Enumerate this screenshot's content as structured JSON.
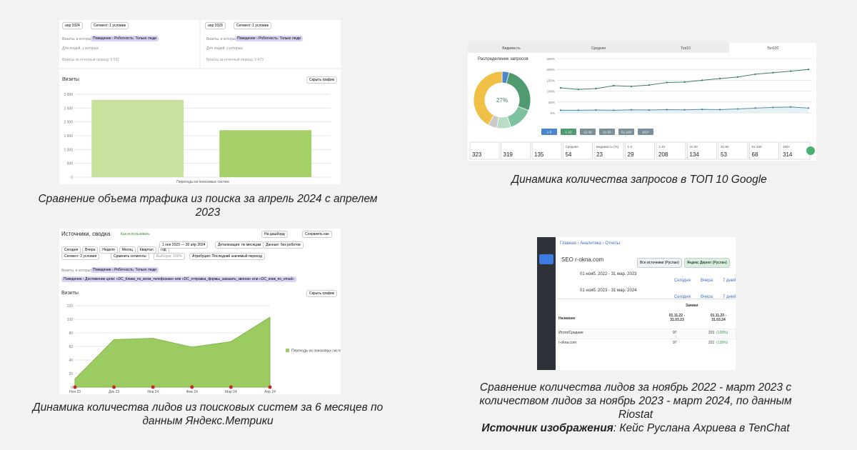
{
  "traffic": {
    "left_date": "апр 2024",
    "right_date": "апр 2023",
    "segment": "Сегмент: 1 условие",
    "visits_in": "Визиты, в которых",
    "condition": "Поведение › Роботность: Только люди",
    "for_people": "Для людей, у которых",
    "left_total": "Визиты за отчетный период: 9 591",
    "right_total": "Визиты за отчетный период: 9 473",
    "metric": "Визиты",
    "hide": "Скрыть график",
    "chart_data": {
      "type": "bar",
      "categories": [
        null,
        null
      ],
      "xlabel": "Переходы из поисковых систем",
      "values": [
        2800,
        1700
      ],
      "colors": [
        "#c7e29e",
        "#a5d06a"
      ],
      "ylim": [
        0,
        3000
      ],
      "yticks": [
        0,
        500,
        {
          "value": 1000,
          "label": "1 000"
        },
        {
          "value": 1500,
          "label": "1 500"
        },
        {
          "value": 2000,
          "label": "2 000"
        },
        {
          "value": 2500,
          "label": "2 500"
        },
        {
          "value": 3000,
          "label": "3 000"
        }
      ],
      "grid": true
    }
  },
  "top10": {
    "tabs": [
      "Видимость",
      "Средняя",
      "Топ10",
      "Топ100"
    ],
    "donut_title": "Распределение запросов",
    "donut": {
      "type": "pie",
      "values": [
        4,
        27,
        14,
        8,
        5,
        42
      ],
      "colors": [
        "#4a86c8",
        "#4f9a6e",
        "#7cc2a0",
        "#b8dcc4",
        "#c9c9c9",
        "#f0bf45"
      ],
      "center_label": "27%"
    },
    "chart_data": {
      "type": "line",
      "ylim": [
        0,
        250
      ],
      "yticks": [
        {
          "value": 0,
          "label": "0%"
        },
        {
          "value": 50,
          "label": "50%"
        },
        {
          "value": 100,
          "label": "100%"
        },
        {
          "value": 150,
          "label": "150%"
        },
        {
          "value": 200,
          "label": "200%"
        },
        {
          "value": 250,
          "label": "250%"
        }
      ],
      "grid": true,
      "series": [
        {
          "name": "Топ10",
          "color": "#3d7f6f",
          "values": [
            115,
            108,
            112,
            125,
            122,
            128,
            140,
            142,
            150,
            158,
            165,
            178,
            185,
            192,
            200
          ]
        },
        {
          "name": "Топ100",
          "color": "#4f8aa8",
          "values": [
            12,
            12,
            13,
            12,
            14,
            13,
            15,
            14,
            16,
            15,
            18,
            22,
            25,
            27,
            22
          ]
        }
      ]
    },
    "ranges": [
      "1-3",
      "1-10",
      "11-30",
      "31-50",
      "51-100",
      "101+"
    ],
    "stats": [
      {
        "label": "",
        "value": 323
      },
      {
        "label": "",
        "value": 319
      },
      {
        "label": "",
        "value": 135
      },
      {
        "label": "Средняя",
        "value": 54
      },
      {
        "label": "Видимость (%)",
        "value": 23
      },
      {
        "label": "1-3",
        "value": 29
      },
      {
        "label": "1-10",
        "value": 208
      },
      {
        "label": "11-30",
        "value": 134
      },
      {
        "label": "31-50",
        "value": 53
      },
      {
        "label": "51-100",
        "value": 68
      },
      {
        "label": "100+",
        "value": 314
      }
    ]
  },
  "leads": {
    "title": "Источники, сводка",
    "howto": "Как использовать",
    "periods": [
      "Сегодня",
      "Вчера",
      "Неделя",
      "Месяц",
      "Квартал",
      "Год"
    ],
    "range": "1 ноя 2023 — 30 апр 2024",
    "detail": "Детализация: по месяцам",
    "robots": "Данные: без роботов",
    "segment": "Сегмент: 2 условия",
    "compare": "Сравнить сегменты",
    "sample": "Выборка: 100%",
    "attribution": "Атрибуция: Последний значимый переход",
    "dashboard": "На дашборд",
    "save": "Сохранить как",
    "visits_in": "Визиты, в которых",
    "condition": "Поведение › Роботность: Только люди",
    "goal": "Поведение › Достижение цели: «DC_Клики_по_всем_телефонам» или «DC_отправка_формы_заказать_звонок» или «DC_клик_по_email»",
    "metric": "Визиты",
    "hide": "Скрыть график",
    "chart_data": {
      "type": "area",
      "categories": [
        "Ноя 23",
        "Дек 23",
        "Янв 24",
        "Фев 24",
        "Мар 24",
        "Апр 24"
      ],
      "values": [
        12,
        70,
        72,
        59,
        67,
        103
      ],
      "color": "#9ccb62",
      "ylim": [
        0,
        120
      ],
      "yticks": [
        0,
        20,
        40,
        60,
        80,
        100,
        120
      ],
      "grid": true,
      "legend": "Переходы из поисковых систем"
    }
  },
  "riostat": {
    "crumbs": [
      "Главная",
      "Аналитика",
      "Отчеты"
    ],
    "project": "SEO r-okna.com",
    "chips": [
      "Все источники (Руслан)",
      "Яндекс Директ (Руслан)"
    ],
    "date1": "01 нояб. 2022 - 31 мар. 2023",
    "date2": "01 нояб. 2023 - 31 мар. 2024",
    "quick": [
      "Сегодня",
      "Вчера",
      "7 дней"
    ],
    "group": "Заявки",
    "name_col": "Название",
    "cols": [
      "01.11.22 - 31.03.23",
      "01.11.23 - 31.03.24"
    ],
    "rows": [
      [
        "Итого/Средние",
        "97",
        "221",
        "(128%)"
      ],
      [
        "r-okna.com",
        "97",
        "221",
        "(128%)"
      ]
    ]
  },
  "captions": {
    "traffic": "Сравнение объема трафика из поиска за апрель 2024 с апрелем 2023",
    "top10": "Динамика количества запросов в ТОП 10 Google",
    "leads": "Динамика количества лидов из поисковых систем за 6 месяцев по данным Яндекс.Метрики",
    "riostat": "Сравнение количества лидов за ноябрь 2022 - март 2023 с количеством лидов за ноябрь 2023 - март 2024, по данным Riostat",
    "source_bold": "Источник изображения",
    "source": ": Кейс Руслана Ахриева в TenChat"
  }
}
